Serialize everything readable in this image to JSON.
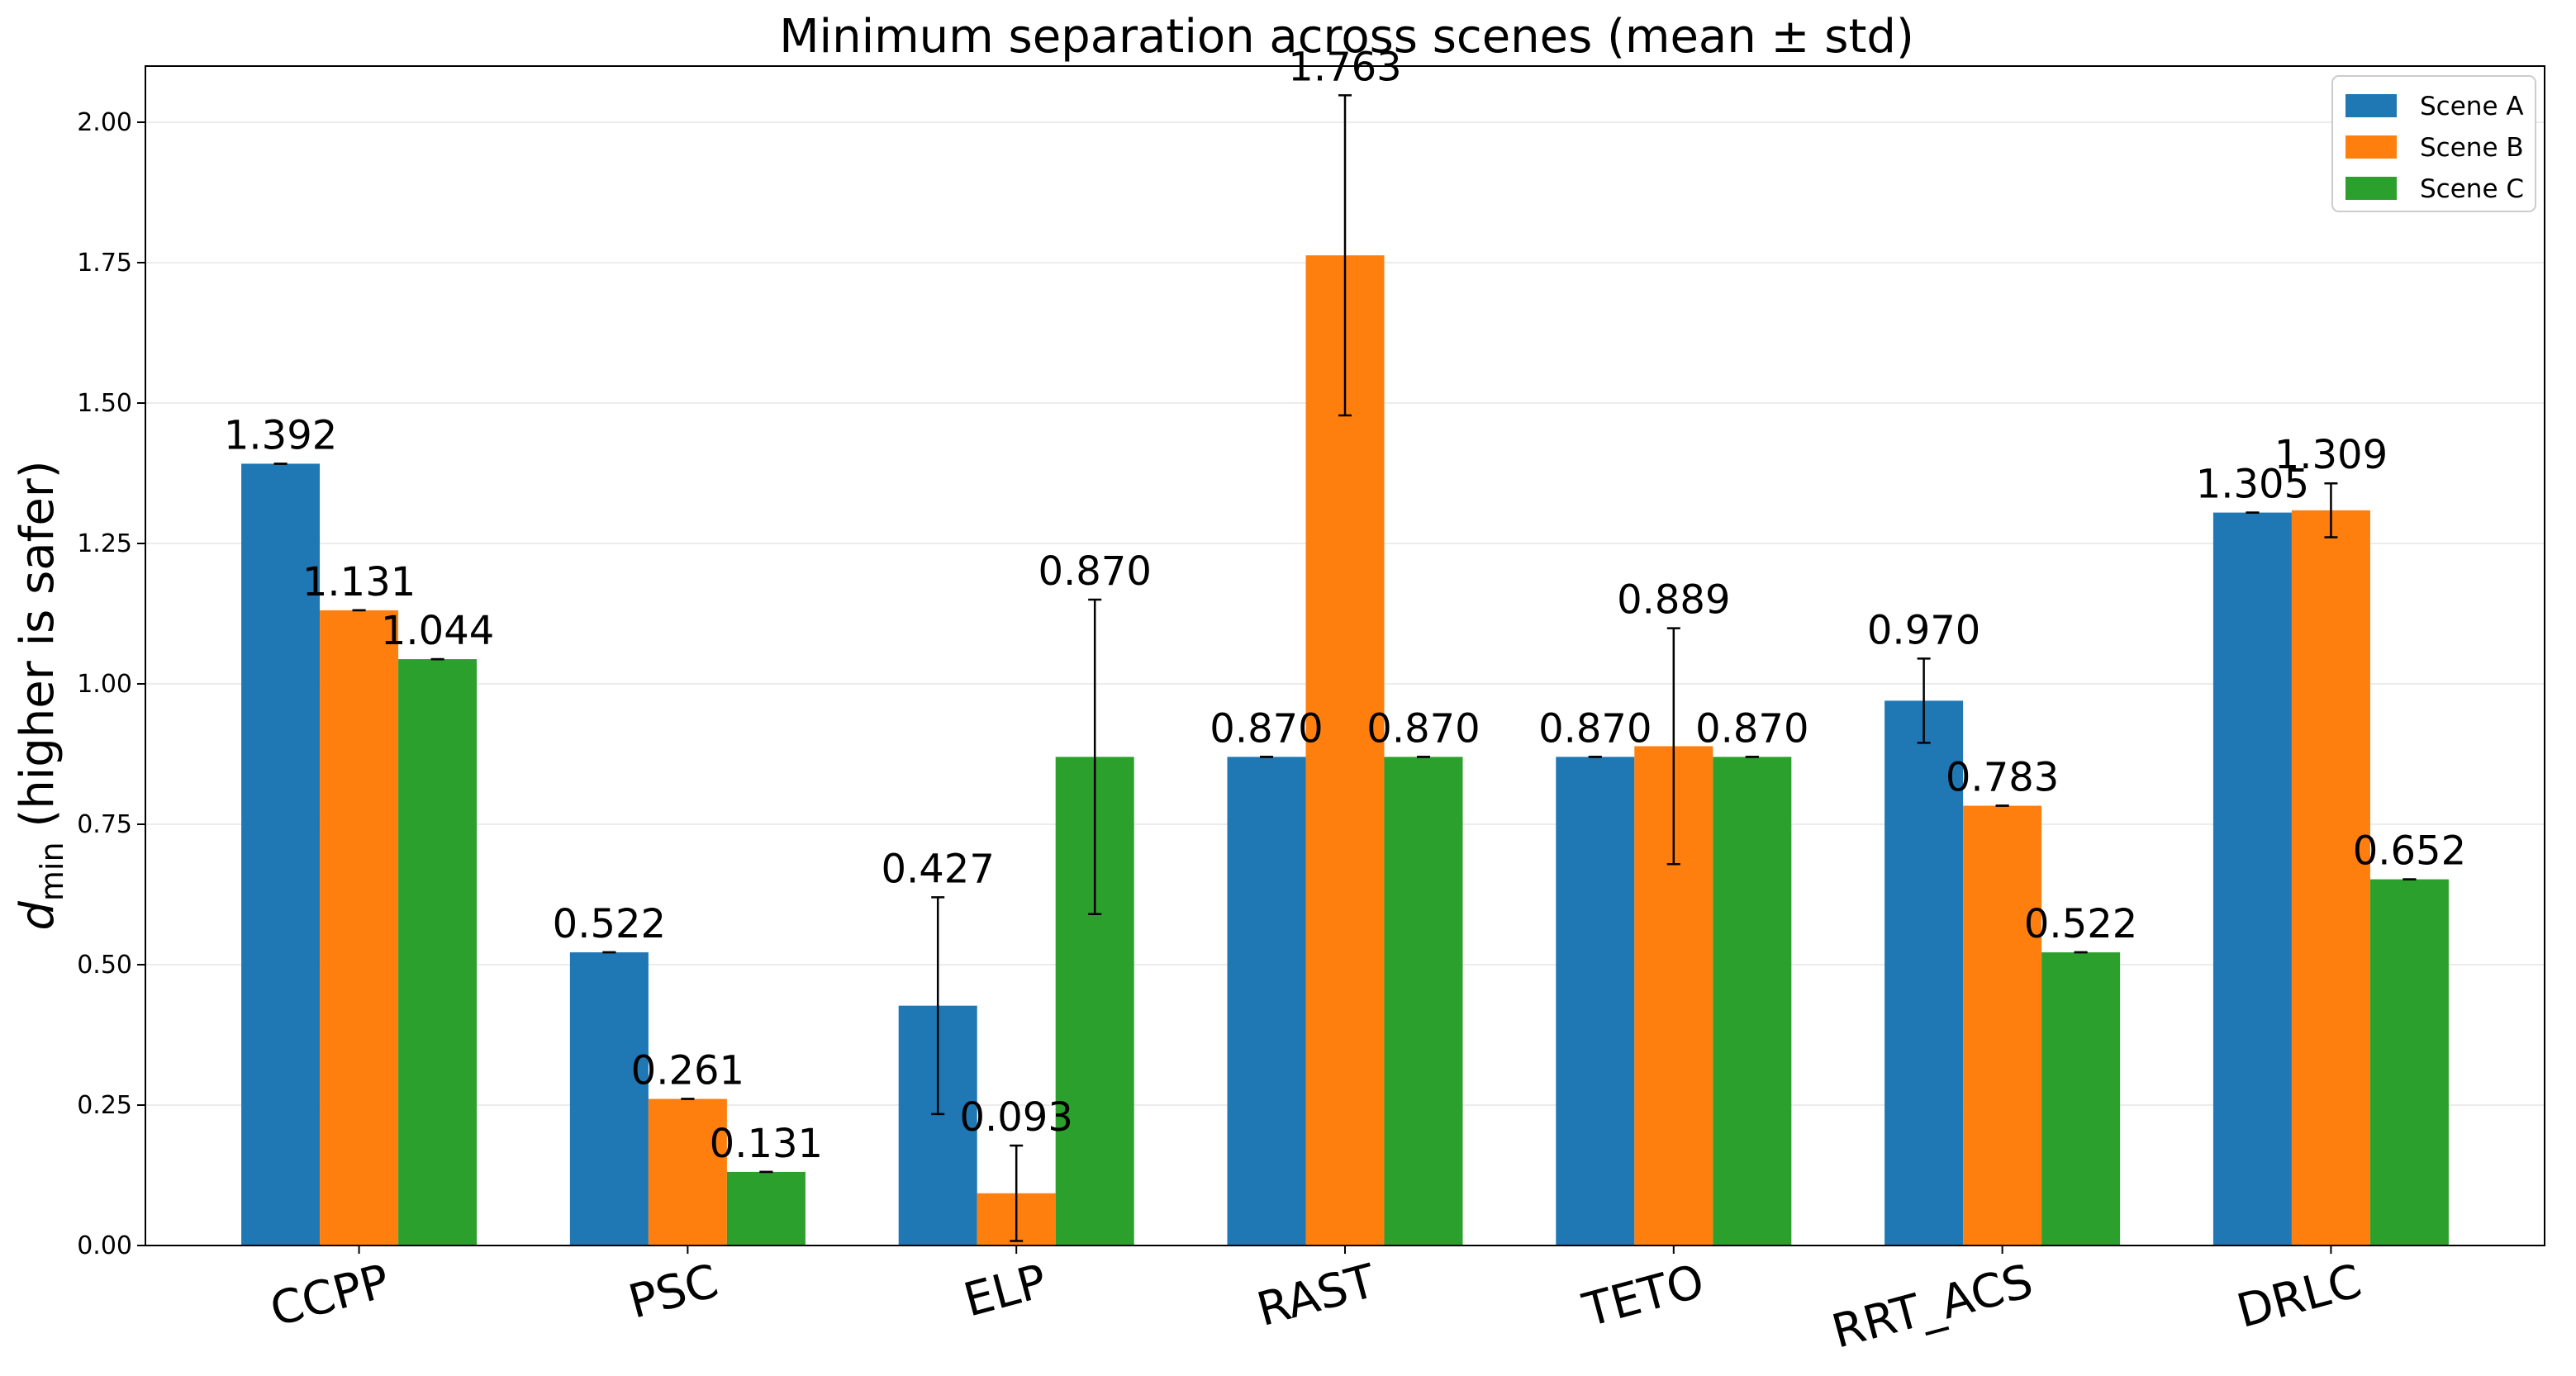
{
  "chart_data": {
    "type": "bar",
    "title": "Minimum separation across scenes (mean ± std)",
    "ylabel": {
      "symbol": "d",
      "subscript": "min",
      "rest": " (higher is safer)"
    },
    "xlabel": "",
    "ylim": [
      0,
      2.1
    ],
    "yticks": [
      "0.00",
      "0.25",
      "0.50",
      "0.75",
      "1.00",
      "1.25",
      "1.50",
      "1.75",
      "2.00"
    ],
    "grid": "horizontal",
    "legend_position": "top-right",
    "categories": [
      "CCPP",
      "PSC",
      "ELP",
      "RAST",
      "TETO",
      "RRT_ACS",
      "DRLC"
    ],
    "series": [
      {
        "name": "Scene A",
        "color": "#1f77b4",
        "values": [
          1.392,
          0.522,
          0.427,
          0.87,
          0.87,
          0.97,
          1.305
        ],
        "std": [
          0.0,
          0.0,
          0.193,
          0.0,
          0.0,
          0.075,
          0.0
        ],
        "labels": [
          "1.392",
          "0.522",
          "0.427",
          "0.870",
          "0.870",
          "0.970",
          "1.305"
        ]
      },
      {
        "name": "Scene B",
        "color": "#ff7f0e",
        "values": [
          1.131,
          0.261,
          0.093,
          1.763,
          0.889,
          0.783,
          1.309
        ],
        "std": [
          0.0,
          0.0,
          0.085,
          0.285,
          0.21,
          0.0,
          0.048
        ],
        "labels": [
          "1.131",
          "0.261",
          "0.093",
          "1.763",
          "0.889",
          "0.783",
          "1.309"
        ]
      },
      {
        "name": "Scene C",
        "color": "#2ca02c",
        "values": [
          1.044,
          0.131,
          0.87,
          0.87,
          0.87,
          0.522,
          0.652
        ],
        "std": [
          0.0,
          0.0,
          0.28,
          0.0,
          0.0,
          0.0,
          0.0
        ],
        "labels": [
          "1.044",
          "0.131",
          "0.870",
          "0.870",
          "0.870",
          "0.522",
          "0.652"
        ]
      }
    ]
  }
}
